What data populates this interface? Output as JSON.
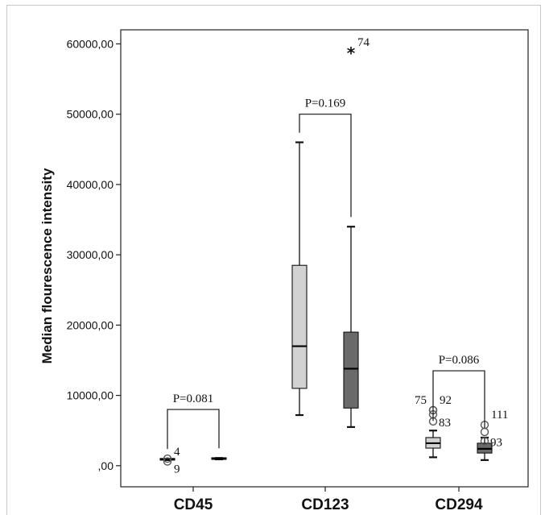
{
  "chart_data": {
    "type": "box",
    "ylabel": "Median flourescence intensity",
    "ylim": [
      -3000,
      62000
    ],
    "yticks": [
      0,
      10000,
      20000,
      30000,
      40000,
      50000,
      60000
    ],
    "ytick_labels": [
      ",00",
      "10000,00",
      "20000,00",
      "30000,00",
      "40000,00",
      "50000,00",
      "60000,00"
    ],
    "categories": [
      "CD45",
      "CD123",
      "CD294"
    ],
    "series": [
      {
        "color": "#d2d2d2",
        "boxes": [
          {
            "min": 800,
            "q1": 800,
            "median": 900,
            "q3": 1000,
            "max": 1000
          },
          {
            "min": 7200,
            "q1": 11000,
            "median": 17000,
            "q3": 28500,
            "max": 46000
          },
          {
            "min": 1200,
            "q1": 2500,
            "median": 3200,
            "q3": 4000,
            "max": 5000
          }
        ]
      },
      {
        "color": "#6a6a6a",
        "boxes": [
          {
            "min": 900,
            "q1": 900,
            "median": 1000,
            "q3": 1100,
            "max": 1100
          },
          {
            "min": 5500,
            "q1": 8200,
            "median": 13800,
            "q3": 19000,
            "max": 34000
          },
          {
            "min": 800,
            "q1": 1800,
            "median": 2400,
            "q3": 3200,
            "max": 4000
          }
        ]
      }
    ],
    "outliers": [
      {
        "cat": 0,
        "series": 0,
        "y": 1000,
        "marker": "circle",
        "label": "4"
      },
      {
        "cat": 0,
        "series": 0,
        "y": 600,
        "marker": "circle",
        "label": "9"
      },
      {
        "cat": 1,
        "series": 1,
        "y": 59000,
        "marker": "star",
        "label": "74"
      },
      {
        "cat": 2,
        "series": 0,
        "y": 6300,
        "marker": "circle",
        "label": "83"
      },
      {
        "cat": 2,
        "series": 0,
        "y": 7300,
        "marker": "circle",
        "label": ""
      },
      {
        "cat": 2,
        "series": 0,
        "y": 7900,
        "marker": "circle",
        "label": "75"
      },
      {
        "cat": 2,
        "series": 0,
        "y": 7900,
        "marker": "circle",
        "label": "92"
      },
      {
        "cat": 2,
        "series": 1,
        "y": 4800,
        "marker": "circle",
        "label": ""
      },
      {
        "cat": 2,
        "series": 1,
        "y": 5800,
        "marker": "circle",
        "label": "111"
      },
      {
        "cat": 2,
        "series": 1,
        "y": 3500,
        "marker": "circle",
        "label": "93"
      }
    ],
    "annotations": [
      {
        "cat": 0,
        "text": "P=0.081",
        "y": 8000
      },
      {
        "cat": 1,
        "text": "P=0.169",
        "y": 50000
      },
      {
        "cat": 2,
        "text": "P=0.086",
        "y": 13500
      }
    ]
  }
}
